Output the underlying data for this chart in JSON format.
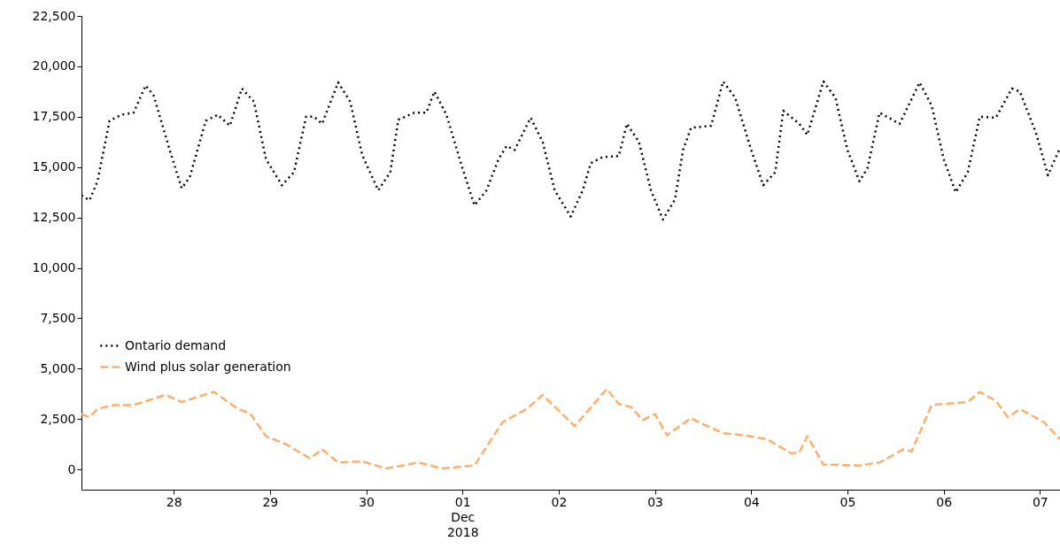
{
  "chart_data": {
    "type": "line",
    "legend": "bottom left",
    "grid": false,
    "ylim": [
      -1000,
      22500
    ],
    "yticks": [
      0,
      {
        "value": 2500,
        "label": "2,500"
      },
      {
        "value": 5000,
        "label": "5,000"
      },
      {
        "value": 7500,
        "label": "7,500"
      },
      {
        "value": 10000,
        "label": "10,000"
      },
      {
        "value": 12500,
        "label": "12,500"
      },
      {
        "value": 15000,
        "label": "15,000"
      },
      {
        "value": 17500,
        "label": "17,500"
      },
      {
        "value": 20000,
        "label": "20,000"
      },
      {
        "value": 22500,
        "label": "22,500"
      }
    ],
    "xlim": [
      "2018-11-27T01:00",
      "2018-12-07T05:00"
    ],
    "xticks": [
      {
        "value": "2018-11-28",
        "label": "28"
      },
      {
        "value": "2018-11-29",
        "label": "29"
      },
      {
        "value": "2018-11-30",
        "label": "30"
      },
      {
        "value": "2018-12-01",
        "label": "01\nDec\n2018"
      },
      {
        "value": "2018-12-02",
        "label": "02"
      },
      {
        "value": "2018-12-03",
        "label": "03"
      },
      {
        "value": "2018-12-04",
        "label": "04"
      },
      {
        "value": "2018-12-05",
        "label": "05"
      },
      {
        "value": "2018-12-06",
        "label": "06"
      },
      {
        "value": "2018-12-07",
        "label": "07"
      }
    ],
    "series": [
      {
        "name": "Ontario demand",
        "color": "#000000",
        "line_style": "dotted",
        "x": [
          "2018-11-27T01:00",
          "2018-11-27T03:00",
          "2018-11-27T05:00",
          "2018-11-27T08:00",
          "2018-11-27T11:00",
          "2018-11-27T14:00",
          "2018-11-27T17:00",
          "2018-11-27T19:00",
          "2018-11-27T23:00",
          "2018-11-28T02:00",
          "2018-11-28T04:00",
          "2018-11-28T08:00",
          "2018-11-28T11:00",
          "2018-11-28T14:00",
          "2018-11-28T17:00",
          "2018-11-28T20:00",
          "2018-11-28T23:00",
          "2018-11-29T03:00",
          "2018-11-29T06:00",
          "2018-11-29T09:00",
          "2018-11-29T11:00",
          "2018-11-29T13:00",
          "2018-11-29T17:00",
          "2018-11-29T20:00",
          "2018-11-29T23:00",
          "2018-11-30T03:00",
          "2018-11-30T06:00",
          "2018-11-30T08:00",
          "2018-11-30T12:00",
          "2018-11-30T15:00",
          "2018-11-30T17:00",
          "2018-11-30T20:00",
          "2018-12-01T00:00",
          "2018-12-01T03:00",
          "2018-12-01T06:00",
          "2018-12-01T09:00",
          "2018-12-01T11:00",
          "2018-12-01T13:00",
          "2018-12-01T17:00",
          "2018-12-01T20:00",
          "2018-12-01T23:00",
          "2018-12-02T03:00",
          "2018-12-02T06:00",
          "2018-12-02T08:00",
          "2018-12-02T11:00",
          "2018-12-02T15:00",
          "2018-12-02T17:00",
          "2018-12-02T20:00",
          "2018-12-02T23:00",
          "2018-12-03T02:00",
          "2018-12-03T05:00",
          "2018-12-03T07:00",
          "2018-12-03T09:00",
          "2018-12-03T14:00",
          "2018-12-03T17:00",
          "2018-12-03T20:00",
          "2018-12-04T00:00",
          "2018-12-04T03:00",
          "2018-12-04T06:00",
          "2018-12-04T08:00",
          "2018-12-04T12:00",
          "2018-12-04T14:00",
          "2018-12-04T18:00",
          "2018-12-04T21:00",
          "2018-12-05T00:00",
          "2018-12-05T03:00",
          "2018-12-05T05:00",
          "2018-12-05T08:00",
          "2018-12-05T13:00",
          "2018-12-05T18:00",
          "2018-12-05T21:00",
          "2018-12-06T00:00",
          "2018-12-06T03:00",
          "2018-12-06T06:00",
          "2018-12-06T09:00",
          "2018-12-06T13:00",
          "2018-12-06T17:00",
          "2018-12-06T19:00",
          "2018-12-06T23:00",
          "2018-12-07T02:00",
          "2018-12-07T05:00"
        ],
        "values": [
          13600,
          13350,
          14300,
          17300,
          17600,
          17700,
          19050,
          18550,
          15850,
          13950,
          14500,
          17300,
          17600,
          17050,
          18900,
          18250,
          15400,
          14100,
          14750,
          17500,
          17500,
          17150,
          19200,
          18250,
          15600,
          13850,
          14750,
          17350,
          17700,
          17700,
          18750,
          17600,
          14950,
          13100,
          13850,
          15400,
          16050,
          15850,
          17450,
          16250,
          13850,
          12550,
          13850,
          15200,
          15500,
          15550,
          17150,
          16250,
          13850,
          12400,
          13400,
          15850,
          16950,
          17050,
          19250,
          18450,
          15850,
          14100,
          14750,
          17800,
          17150,
          16600,
          19250,
          18450,
          15850,
          14300,
          14950,
          17700,
          17150,
          19200,
          18050,
          15400,
          13750,
          14750,
          17500,
          17450,
          18900,
          18750,
          16700,
          14600,
          15950
        ]
      },
      {
        "name": "Wind plus solar generation",
        "color": "#fdae6b",
        "line_style": "dashed",
        "x": [
          "2018-11-27T01:00",
          "2018-11-27T03:00",
          "2018-11-27T05:00",
          "2018-11-27T09:00",
          "2018-11-27T14:00",
          "2018-11-27T22:00",
          "2018-11-28T02:00",
          "2018-11-28T10:00",
          "2018-11-28T16:00",
          "2018-11-28T19:00",
          "2018-11-28T23:00",
          "2018-11-29T04:00",
          "2018-11-29T10:00",
          "2018-11-29T13:00",
          "2018-11-29T17:00",
          "2018-11-29T23:00",
          "2018-11-30T05:00",
          "2018-11-30T13:00",
          "2018-11-30T19:00",
          "2018-12-01T03:00",
          "2018-12-01T10:00",
          "2018-12-01T16:00",
          "2018-12-01T20:00",
          "2018-12-02T04:00",
          "2018-12-02T12:00",
          "2018-12-02T15:00",
          "2018-12-02T18:00",
          "2018-12-02T21:00",
          "2018-12-03T00:00",
          "2018-12-03T03:00",
          "2018-12-03T09:00",
          "2018-12-03T12:00",
          "2018-12-03T17:00",
          "2018-12-03T22:00",
          "2018-12-04T04:00",
          "2018-12-04T10:00",
          "2018-12-04T12:00",
          "2018-12-04T14:00",
          "2018-12-04T18:00",
          "2018-12-05T03:00",
          "2018-12-05T08:00",
          "2018-12-05T14:00",
          "2018-12-05T16:00",
          "2018-12-05T21:00",
          "2018-12-06T06:00",
          "2018-12-06T09:00",
          "2018-12-06T13:00",
          "2018-12-06T16:00",
          "2018-12-06T19:00",
          "2018-12-07T01:00",
          "2018-12-07T05:00"
        ],
        "values": [
          2750,
          2600,
          3000,
          3200,
          3200,
          3700,
          3350,
          3850,
          3000,
          2800,
          1650,
          1250,
          550,
          1000,
          350,
          400,
          50,
          350,
          50,
          200,
          2350,
          3000,
          3700,
          2150,
          4000,
          3250,
          3100,
          2450,
          2750,
          1700,
          2550,
          2250,
          1800,
          1700,
          1500,
          800,
          850,
          1650,
          250,
          200,
          350,
          1000,
          900,
          3200,
          3350,
          3850,
          3400,
          2600,
          3000,
          2350,
          1500
        ]
      }
    ]
  }
}
